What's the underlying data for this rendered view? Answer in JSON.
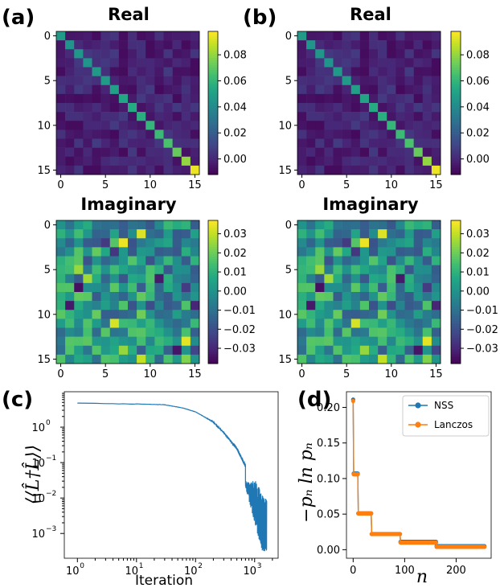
{
  "panel_labels": {
    "a": "(a)",
    "b": "(b)",
    "c": "(c)",
    "d": "(d)"
  },
  "colors": {
    "nss": "#1f77b4",
    "lanczos": "#ff7f0e",
    "convergence": "#1f77b4"
  },
  "chart_data": [
    {
      "id": "a-real",
      "type": "heatmap",
      "title": "Real",
      "colormap": "viridis",
      "size": 16,
      "vmin": -0.012,
      "vmax": 0.098,
      "xticks": [
        0,
        5,
        10,
        15
      ],
      "yticks": [
        0,
        5,
        10,
        15
      ],
      "colorbar_ticks": [
        "0.00",
        "0.02",
        "0.04",
        "0.06",
        "0.08"
      ],
      "colorbar_values": [
        0.0,
        0.02,
        0.04,
        0.06,
        0.08
      ],
      "diagonal": [
        0.048,
        0.045,
        0.046,
        0.045,
        0.047,
        0.048,
        0.05,
        0.052,
        0.055,
        0.057,
        0.06,
        0.062,
        0.066,
        0.072,
        0.08,
        0.095
      ],
      "offdiag_range": [
        -0.01,
        0.012
      ]
    },
    {
      "id": "a-imag",
      "type": "heatmap",
      "title": "Imaginary",
      "colormap": "viridis",
      "size": 16,
      "vmin": -0.038,
      "vmax": 0.037,
      "xticks": [
        0,
        5,
        10,
        15
      ],
      "yticks": [
        0,
        5,
        10,
        15
      ],
      "colorbar_ticks": [
        "0.03",
        "0.02",
        "0.01",
        "0.00",
        "−0.01",
        "−0.02",
        "−0.03"
      ],
      "colorbar_values": [
        0.03,
        0.02,
        0.01,
        0.0,
        -0.01,
        -0.02,
        -0.03
      ],
      "antisymmetric": true,
      "offdiag_range": [
        -0.035,
        0.035
      ]
    },
    {
      "id": "b-real",
      "type": "heatmap",
      "title": "Real",
      "colormap": "viridis",
      "size": 16,
      "vmin": -0.012,
      "vmax": 0.098,
      "xticks": [
        0,
        5,
        10,
        15
      ],
      "yticks": [
        0,
        5,
        10,
        15
      ],
      "colorbar_ticks": [
        "0.00",
        "0.02",
        "0.04",
        "0.06",
        "0.08"
      ],
      "colorbar_values": [
        0.0,
        0.02,
        0.04,
        0.06,
        0.08
      ],
      "diagonal": [
        0.048,
        0.045,
        0.046,
        0.045,
        0.047,
        0.048,
        0.05,
        0.052,
        0.055,
        0.057,
        0.06,
        0.062,
        0.066,
        0.072,
        0.08,
        0.095
      ],
      "offdiag_range": [
        -0.01,
        0.012
      ]
    },
    {
      "id": "b-imag",
      "type": "heatmap",
      "title": "Imaginary",
      "colormap": "viridis",
      "size": 16,
      "vmin": -0.038,
      "vmax": 0.037,
      "xticks": [
        0,
        5,
        10,
        15
      ],
      "yticks": [
        0,
        5,
        10,
        15
      ],
      "colorbar_ticks": [
        "0.03",
        "0.02",
        "0.01",
        "0.00",
        "−0.01",
        "−0.02",
        "−0.03"
      ],
      "colorbar_values": [
        0.03,
        0.02,
        0.01,
        0.0,
        -0.01,
        -0.02,
        -0.03
      ],
      "antisymmetric": true,
      "offdiag_range": [
        -0.035,
        0.035
      ]
    },
    {
      "id": "c",
      "type": "line",
      "title": "",
      "xlabel": "Iteration",
      "ylabel": "⟨⟨L̂†L̂⟩⟩",
      "xscale": "log",
      "yscale": "log",
      "xlim": [
        0.6,
        2500
      ],
      "ylim": [
        0.0002,
        10
      ],
      "xtick_values": [
        1,
        10,
        100,
        1000
      ],
      "xtick_labels": [
        {
          "base": "10",
          "exp": "0"
        },
        {
          "base": "10",
          "exp": "1"
        },
        {
          "base": "10",
          "exp": "2"
        },
        {
          "base": "10",
          "exp": "3"
        }
      ],
      "ytick_values": [
        1,
        0.1,
        0.01,
        0.001
      ],
      "ytick_labels": [
        {
          "base": "10",
          "exp": "0"
        },
        {
          "base": "10",
          "exp": "−1"
        },
        {
          "base": "10",
          "exp": "−2"
        },
        {
          "base": "10",
          "exp": "−3"
        }
      ],
      "series": [
        {
          "x": [
            1,
            3,
            10,
            30,
            60,
            100,
            200,
            300,
            500,
            700,
            900,
            1100,
            1300,
            1500
          ],
          "y": [
            4.8,
            4.6,
            4.5,
            4.3,
            3.5,
            2.7,
            1.4,
            0.7,
            0.25,
            0.08,
            0.03,
            0.012,
            0.005,
            0.004
          ]
        }
      ],
      "noise_tail": {
        "start": 700,
        "end": 1600,
        "ymin": 0.0003,
        "ymax": 0.03
      }
    },
    {
      "id": "d",
      "type": "line",
      "title": "",
      "xlabel": "n",
      "ylabel": "−pₙ ln pₙ",
      "xlim": [
        -13,
        268
      ],
      "ylim": [
        -0.012,
        0.222
      ],
      "xticks": [
        0,
        100,
        200
      ],
      "yticks": [
        0.0,
        0.05,
        0.1,
        0.15,
        0.2
      ],
      "ytick_labels": [
        "0.00",
        "0.05",
        "0.10",
        "0.15",
        "0.20"
      ],
      "legend_position": "top-right",
      "series": [
        {
          "name": "NSS",
          "color": "#1f77b4",
          "steps": [
            [
              0,
              0,
              0.211
            ],
            [
              1,
              9,
              0.107
            ],
            [
              10,
              35,
              0.051
            ],
            [
              36,
              91,
              0.022
            ],
            [
              92,
              161,
              0.011
            ],
            [
              162,
              255,
              0.005
            ]
          ]
        },
        {
          "name": "Lanczos",
          "color": "#ff7f0e",
          "steps": [
            [
              0,
              0,
              0.209
            ],
            [
              1,
              9,
              0.106
            ],
            [
              10,
              35,
              0.051
            ],
            [
              36,
              91,
              0.022
            ],
            [
              92,
              161,
              0.01
            ],
            [
              162,
              255,
              0.004
            ]
          ]
        }
      ]
    }
  ]
}
